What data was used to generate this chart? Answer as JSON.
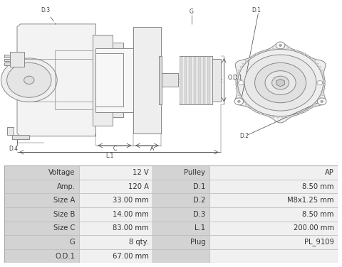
{
  "bg_color": "#ffffff",
  "lc": "#888888",
  "lc_dim": "#666666",
  "lc_thin": "#999999",
  "face_color": "#f0f0f0",
  "face_dark": "#e0e0e0",
  "table_data": [
    [
      "Voltage",
      "12 V",
      "Pulley",
      "AP"
    ],
    [
      "Amp.",
      "120 A",
      "D.1",
      "8.50 mm"
    ],
    [
      "Size A",
      "33.00 mm",
      "D.2",
      "M8x1.25 mm"
    ],
    [
      "Size B",
      "14.00 mm",
      "D.3",
      "8.50 mm"
    ],
    [
      "Size C",
      "83.00 mm",
      "L.1",
      "200.00 mm"
    ],
    [
      "G",
      "8 qty.",
      "Plug",
      "PL_9109"
    ],
    [
      "O.D.1",
      "67.00 mm",
      "",
      ""
    ]
  ],
  "font_size_table": 7.2,
  "label_fontsize": 5.5,
  "label_color": "#444444"
}
